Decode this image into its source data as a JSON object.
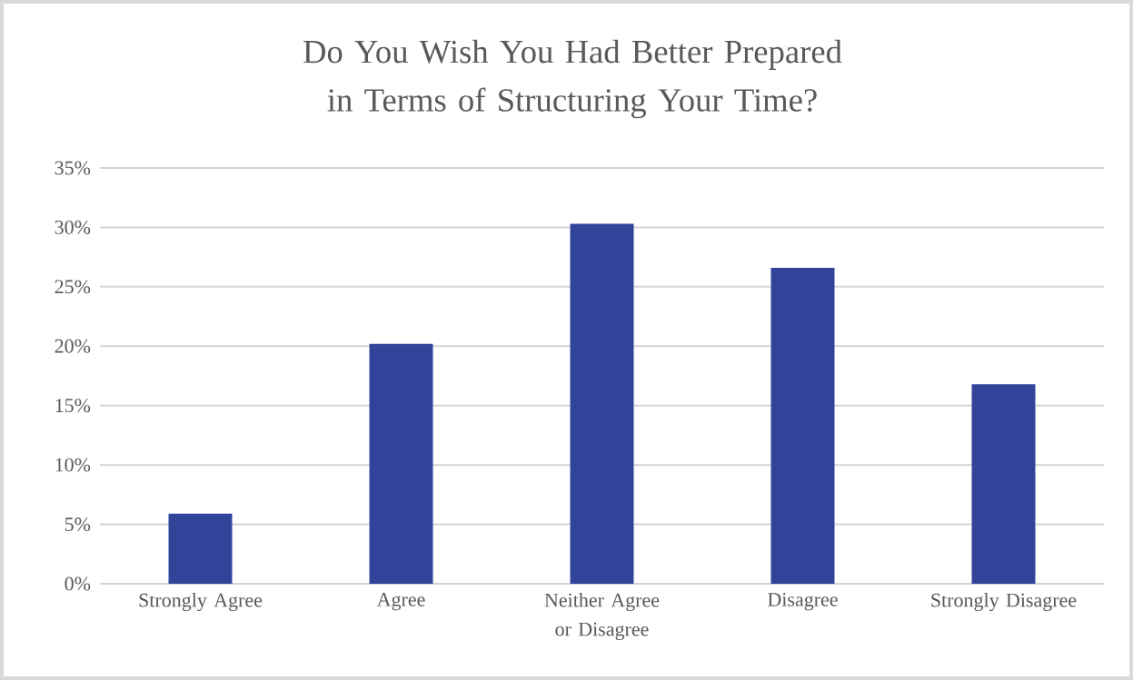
{
  "chart_data": {
    "type": "bar",
    "title": "Do You Wish You Had Better Prepared in Terms of Structuring Your Time?",
    "categories": [
      "Strongly Agree",
      "Agree",
      "Neither Agree or Disagree",
      "Disagree",
      "Strongly Disagree"
    ],
    "values": [
      5.9,
      20.2,
      30.3,
      26.6,
      16.8
    ],
    "color": "#31449a",
    "ylim": [
      0,
      35
    ],
    "yticks": [
      {
        "value": 0,
        "label": "0%"
      },
      {
        "value": 5,
        "label": "5%"
      },
      {
        "value": 10,
        "label": "10%"
      },
      {
        "value": 15,
        "label": "15%"
      },
      {
        "value": 20,
        "label": "20%"
      },
      {
        "value": 25,
        "label": "25%"
      },
      {
        "value": 30,
        "label": "30%"
      },
      {
        "value": 35,
        "label": "35%"
      }
    ],
    "grid": "y"
  }
}
